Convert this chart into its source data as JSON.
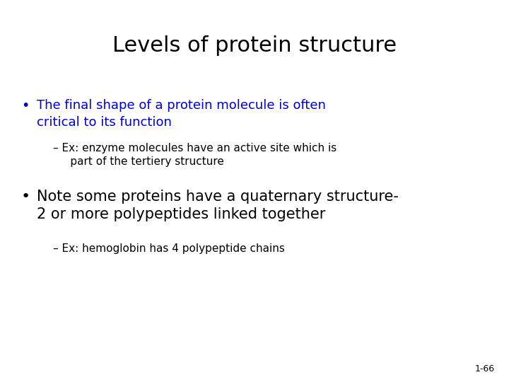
{
  "title": "Levels of protein structure",
  "title_color": "#000000",
  "title_fontsize": 22,
  "background_color": "#ffffff",
  "bullet1_text_line1": "The final shape of a protein molecule is often",
  "bullet1_text_line2": "critical to its function",
  "bullet1_color": "#0000cc",
  "bullet1_fontsize": 13,
  "sub1_line1": "– Ex: enzyme molecules have an active site which is",
  "sub1_line2": "     part of the tertiery structure",
  "sub1_color": "#000000",
  "sub1_fontsize": 11,
  "bullet2_line1": "Note some proteins have a quaternary structure-",
  "bullet2_line2": "2 or more polypeptides linked together",
  "bullet2_color": "#000000",
  "bullet2_fontsize": 15,
  "sub2_line1": "– Ex: hemoglobin has 4 polypeptide chains",
  "sub2_color": "#000000",
  "sub2_fontsize": 11,
  "page_number": "1-66",
  "page_number_fontsize": 9,
  "page_number_color": "#000000"
}
